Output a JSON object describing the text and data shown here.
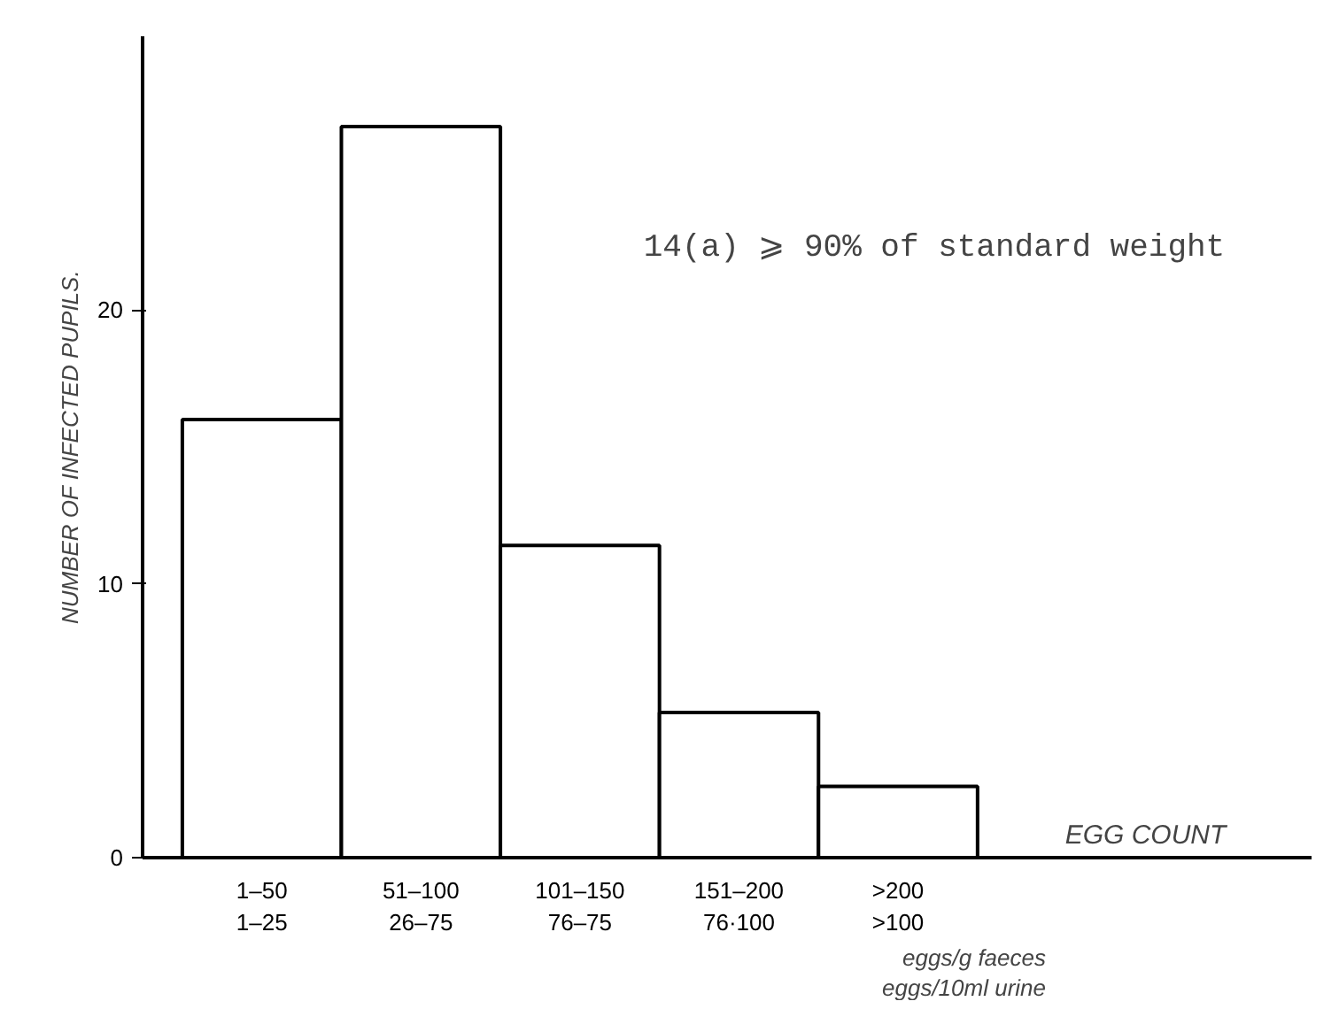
{
  "chart_data": {
    "type": "bar",
    "xlabel": "EGG COUNT",
    "ylabel": "NUMBER OF INFECTED PUPILS.",
    "categories": [
      "1–50\n1–25",
      "51–100\n26–75",
      "101–150\n76–75",
      "151–200\n76·100",
      ">200\n>100"
    ],
    "values": [
      16,
      26.7,
      11.4,
      5.3,
      2.6
    ],
    "color": "#ffffff",
    "ylim": [
      0,
      30
    ],
    "yticks": [
      0,
      10,
      20
    ],
    "grid": false,
    "annotations": [
      "14(a) ⩾ 90% of standard weight",
      "eggs/g faeces",
      "eggs/10ml urine"
    ]
  }
}
